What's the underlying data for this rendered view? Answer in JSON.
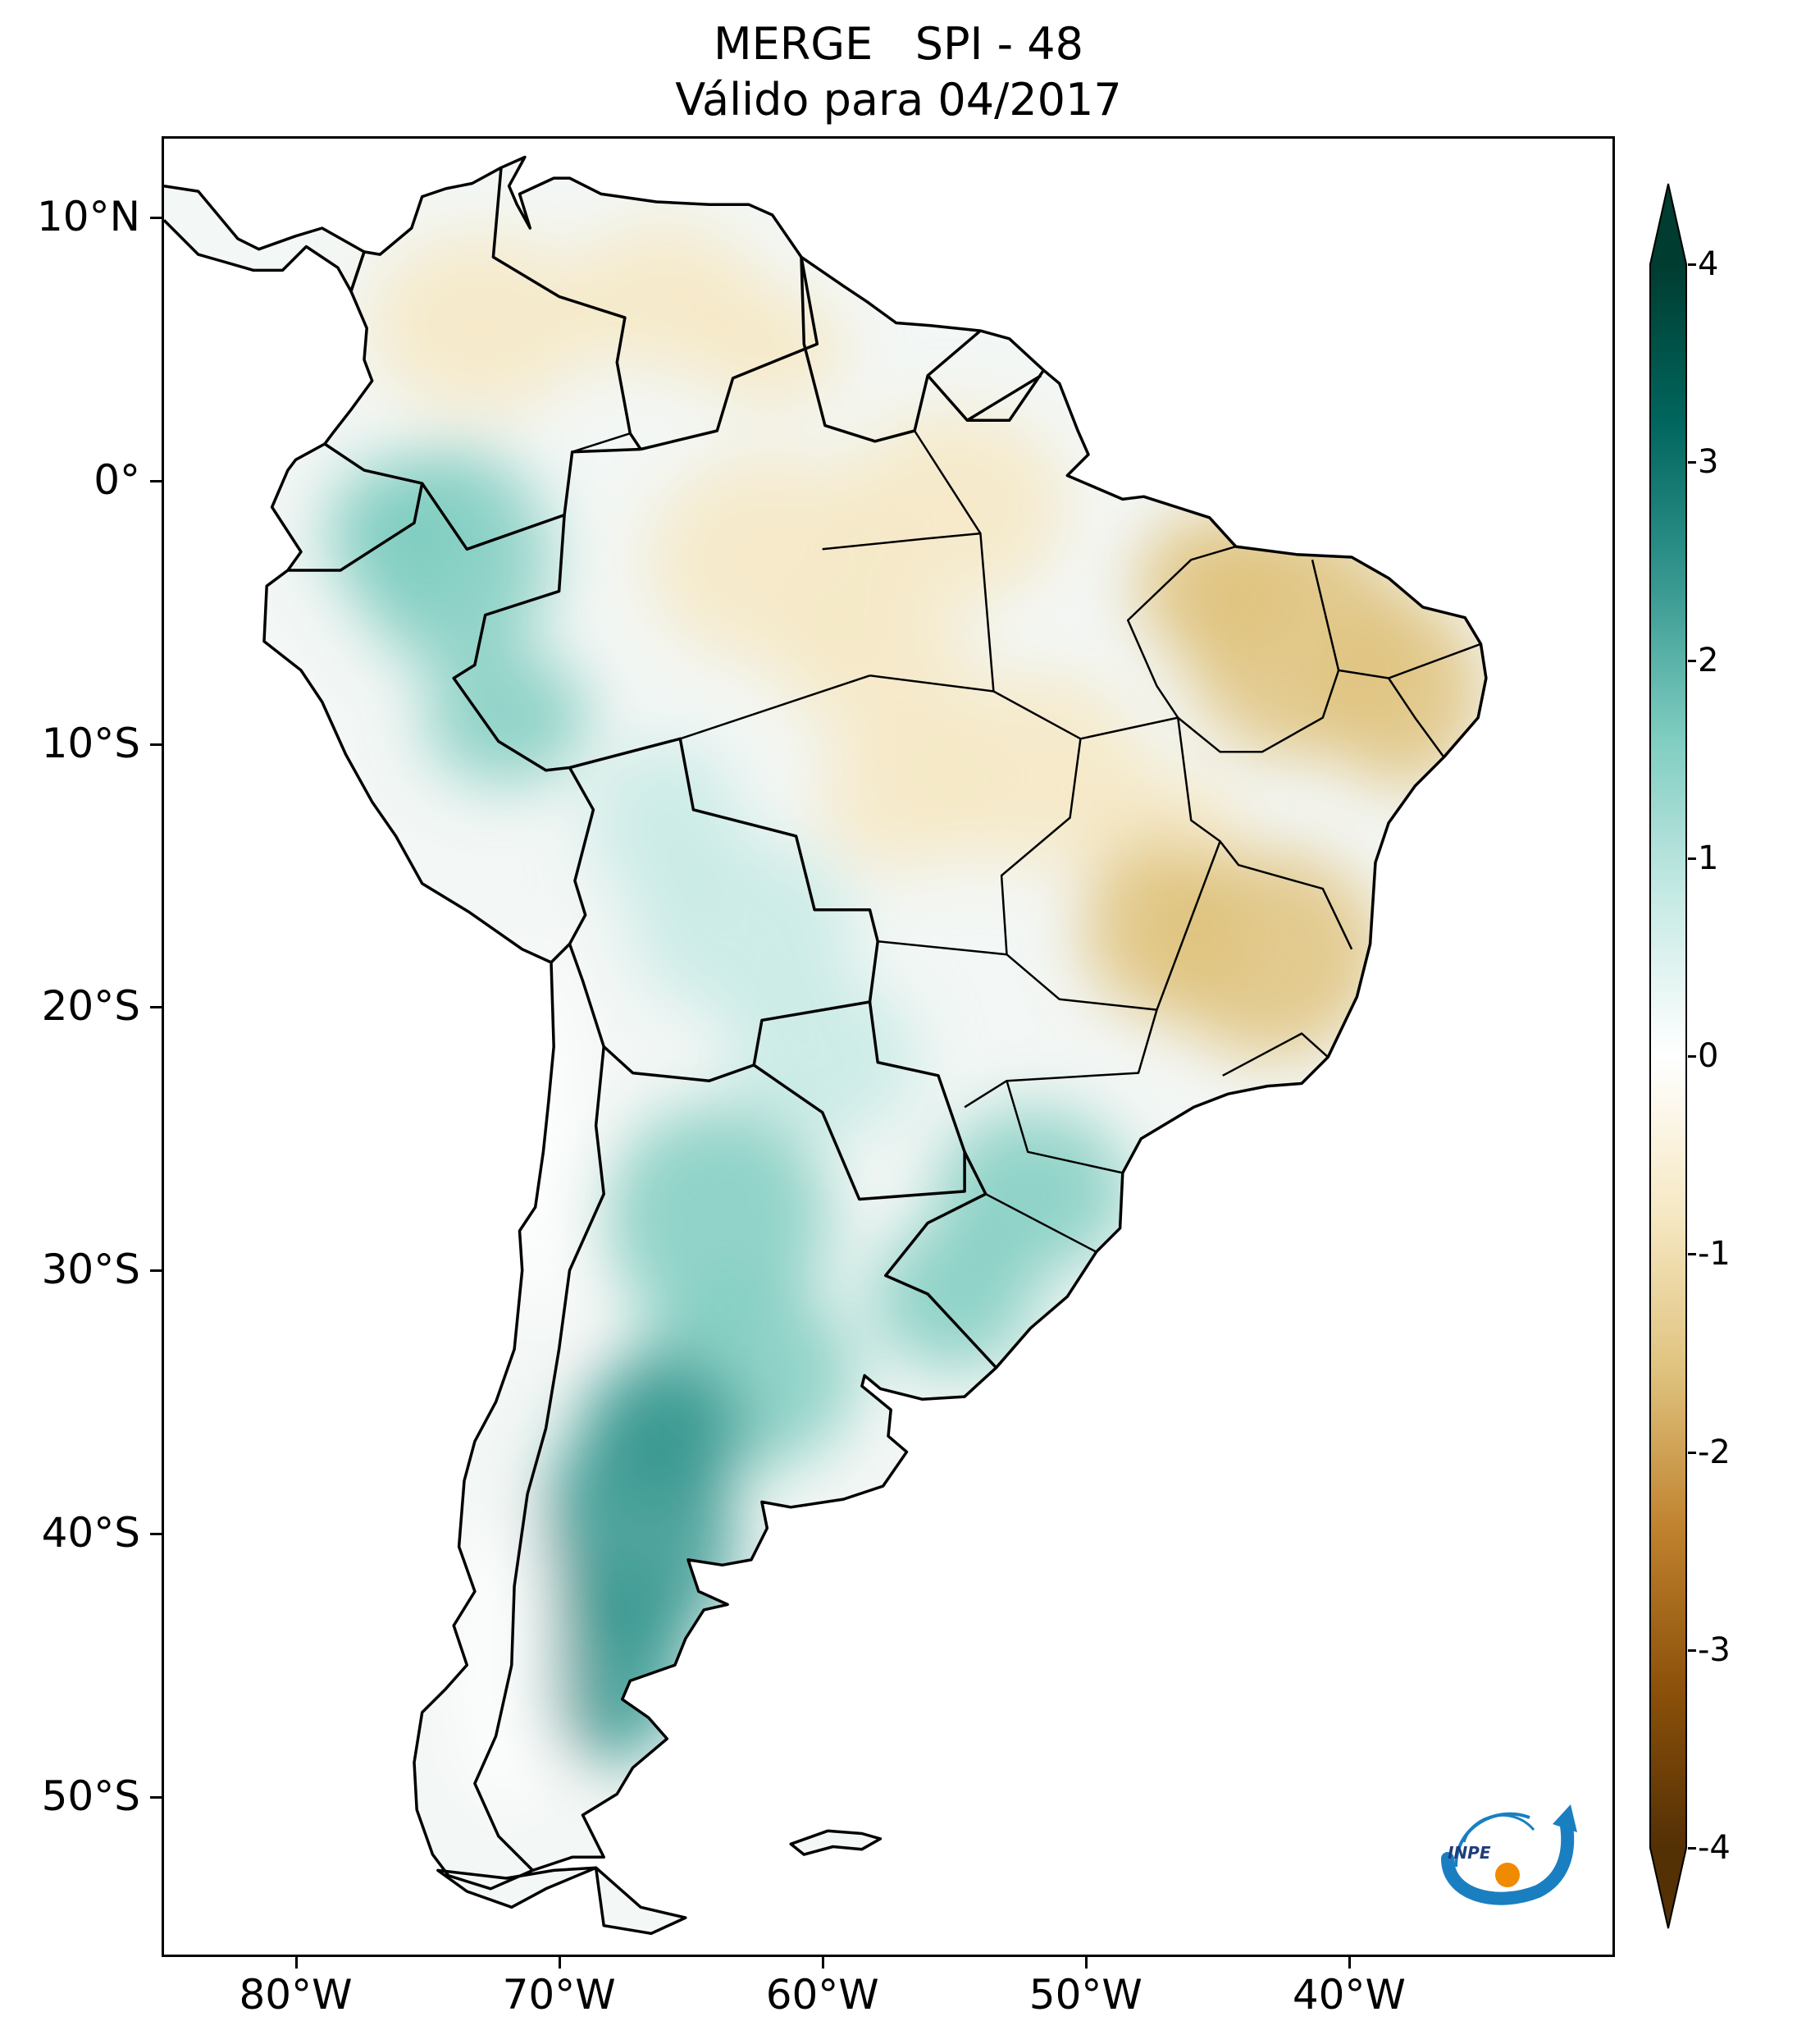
{
  "title": {
    "line1": "MERGE   SPI - 48",
    "line2": "Válido para 04/2017"
  },
  "axes": {
    "lat_ticks": [
      {
        "value": 10,
        "label": "10°N"
      },
      {
        "value": 0,
        "label": "0°"
      },
      {
        "value": -10,
        "label": "10°S"
      },
      {
        "value": -20,
        "label": "20°S"
      },
      {
        "value": -30,
        "label": "30°S"
      },
      {
        "value": -40,
        "label": "40°S"
      },
      {
        "value": -50,
        "label": "50°S"
      }
    ],
    "lon_ticks": [
      {
        "value": -80,
        "label": "80°W"
      },
      {
        "value": -70,
        "label": "70°W"
      },
      {
        "value": -60,
        "label": "60°W"
      },
      {
        "value": -50,
        "label": "50°W"
      },
      {
        "value": -40,
        "label": "40°W"
      }
    ],
    "lon_range": [
      -85,
      -30
    ],
    "lat_range": [
      -56,
      13
    ]
  },
  "colorbar": {
    "min": -4,
    "max": 4,
    "extend": "both",
    "colormap": "BrBG",
    "ticks": [
      {
        "value": 4,
        "label": "4"
      },
      {
        "value": 3,
        "label": "3"
      },
      {
        "value": 2,
        "label": "2"
      },
      {
        "value": 1,
        "label": "1"
      },
      {
        "value": 0,
        "label": "0"
      },
      {
        "value": -1,
        "label": "-1"
      },
      {
        "value": -2,
        "label": "-2"
      },
      {
        "value": -3,
        "label": "-3"
      },
      {
        "value": -4,
        "label": "-4"
      }
    ],
    "colors": [
      "#543005",
      "#8c510a",
      "#bf812d",
      "#dfc27d",
      "#f6e8c3",
      "#ffffff",
      "#c7eae5",
      "#80cdc1",
      "#35978f",
      "#01665e",
      "#003c30"
    ]
  },
  "map": {
    "region": "South America",
    "regions": [
      {
        "name": "northern-south-america",
        "spi": -0.6
      },
      {
        "name": "western-amazon",
        "spi": 1.6
      },
      {
        "name": "central-amazon",
        "spi": -1.2
      },
      {
        "name": "northeast-brazil",
        "spi": -1.4
      },
      {
        "name": "central-brazil",
        "spi": -0.9
      },
      {
        "name": "southeast-brazil",
        "spi": -1.8
      },
      {
        "name": "bolivia-paraguay",
        "spi": 1.0
      },
      {
        "name": "southern-brazil-uruguay",
        "spi": 1.2
      },
      {
        "name": "central-argentina",
        "spi": 1.3
      },
      {
        "name": "patagonia",
        "spi": 2.1
      },
      {
        "name": "chile-andes",
        "spi": 0.2
      }
    ]
  },
  "logo": {
    "text": "INPE"
  }
}
